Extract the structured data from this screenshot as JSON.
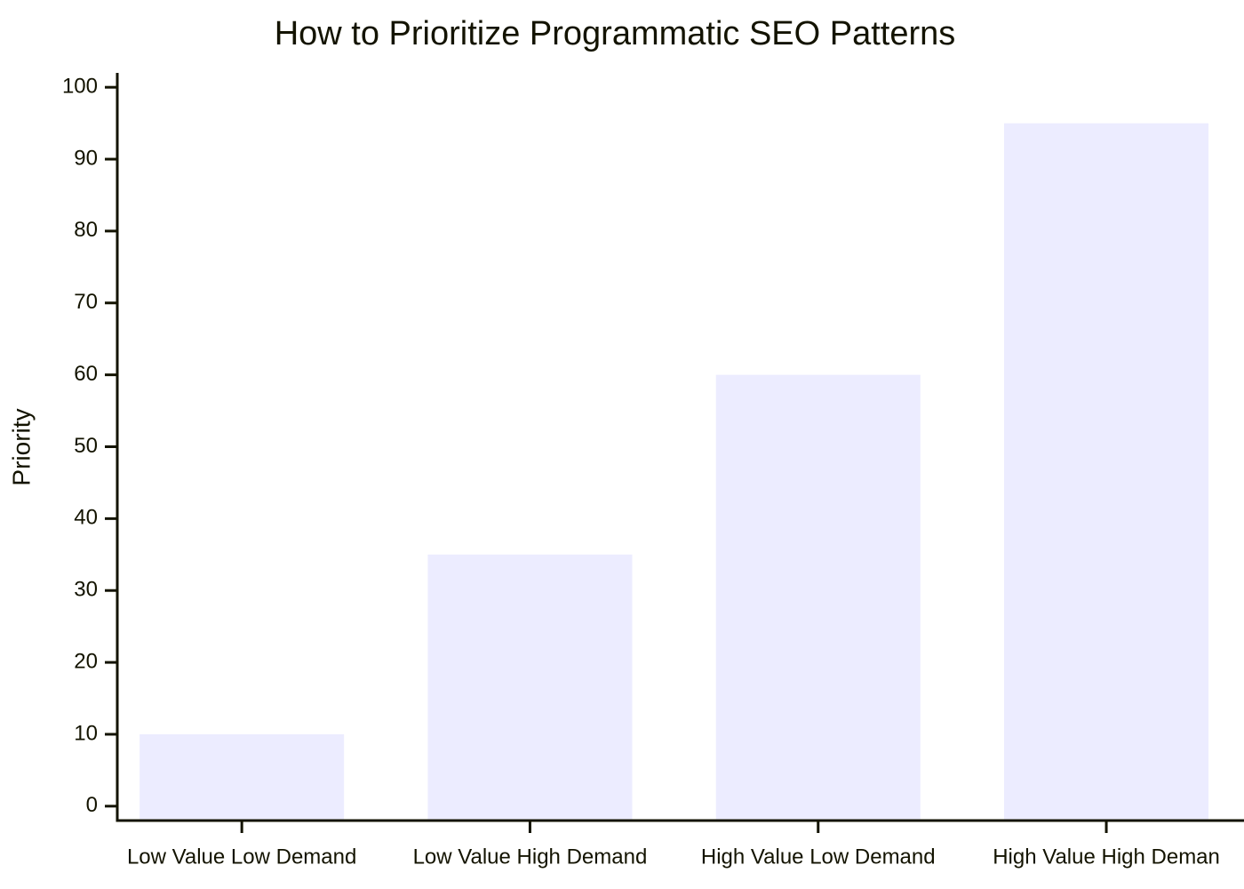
{
  "chart_data": {
    "type": "bar",
    "title": "How to Prioritize Programmatic SEO Patterns",
    "y_label": "Priority",
    "categories": [
      "Low Value Low Demand",
      "Low Value High Demand",
      "High Value Low Demand",
      "High Value High Deman"
    ],
    "values": [
      10,
      35,
      60,
      95
    ],
    "color": "#ececff",
    "ylim": [
      -2,
      102
    ],
    "yticks": [
      0,
      10,
      20,
      30,
      40,
      50,
      60,
      70,
      80,
      90,
      100
    ],
    "grid": false
  }
}
